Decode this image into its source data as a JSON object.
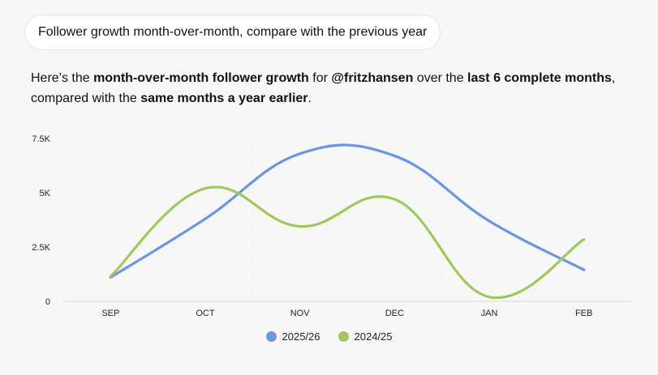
{
  "prompt": {
    "text": "Follower growth month-over-month, compare with the previous year"
  },
  "reply": {
    "t1": "Here’s the ",
    "b1": "month-over-month follower growth",
    "t2": " for ",
    "b2": "@fritzhansen",
    "t3": " over the ",
    "b3": "last 6 complete months",
    "t4": ", compared with the ",
    "b4": "same months a year earlier",
    "t5": "."
  },
  "chart_data": {
    "type": "line",
    "categories": [
      "SEP",
      "OCT",
      "NOV",
      "DEC",
      "JAN",
      "FEB"
    ],
    "series": [
      {
        "name": "2025/26",
        "color": "#6a95e3",
        "values": [
          1100,
          3800,
          6800,
          6700,
          3700,
          1450
        ]
      },
      {
        "name": "2024/25",
        "color": "#9fc95a",
        "values": [
          1150,
          5200,
          3450,
          4700,
          200,
          2850
        ]
      }
    ],
    "y_ticks": [
      0,
      2500,
      5000,
      7500
    ],
    "y_tick_labels": [
      "0",
      "2.5K",
      "5K",
      "7.5K"
    ],
    "ylim": [
      0,
      7500
    ],
    "title": "",
    "xlabel": "",
    "ylabel": "",
    "grid": true,
    "legend": "bottom-center"
  }
}
